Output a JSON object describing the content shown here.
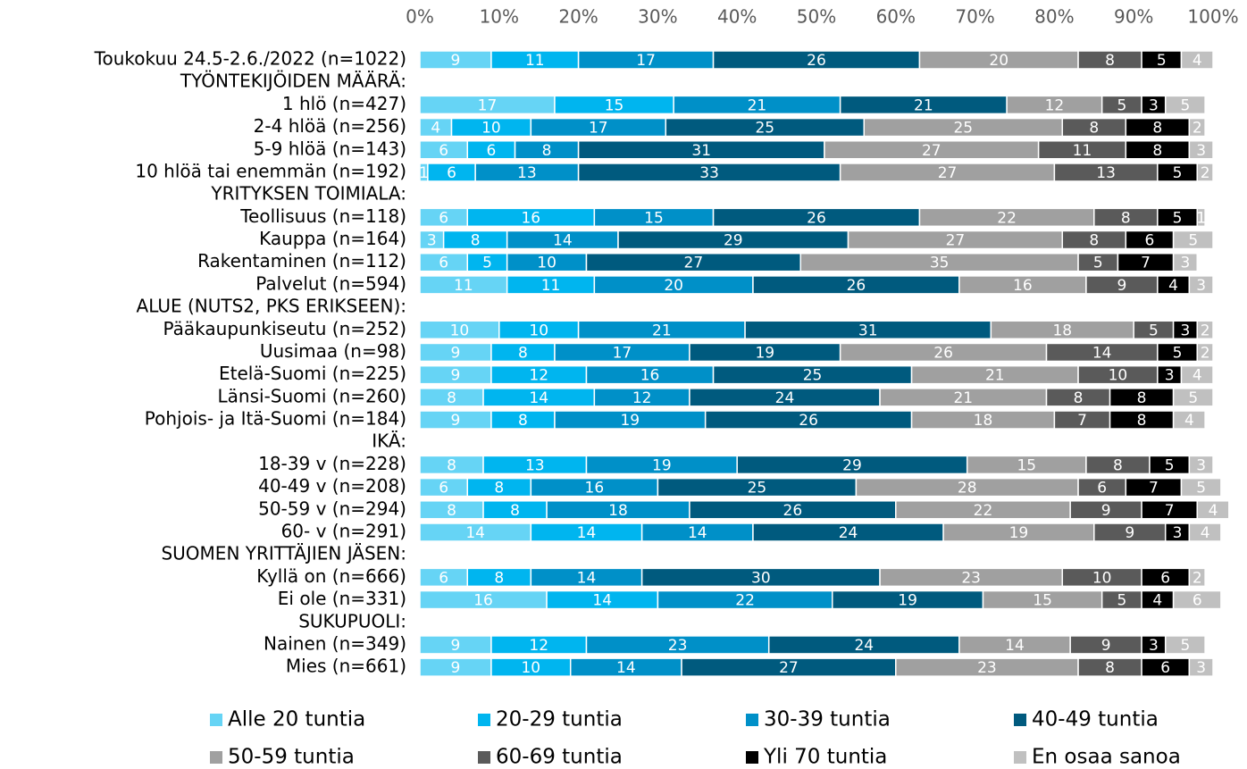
{
  "chart_data": {
    "type": "stacked-bar-horizontal",
    "categories": [
      "Toukokuu 24.5-2.6./2022 (n=1022)",
      "TYÖNTEKIJÖIDEN MÄÄRÄ:",
      "1 hlö (n=427)",
      "2-4 hlöä (n=256)",
      "5-9 hlöä (n=143)",
      "10 hlöä tai enemmän (n=192)",
      "YRITYKSEN TOIMIALA:",
      "Teollisuus (n=118)",
      "Kauppa (n=164)",
      "Rakentaminen (n=112)",
      "Palvelut (n=594)",
      "ALUE (NUTS2, PKS ERIKSEEN):",
      "Pääkaupunkiseutu (n=252)",
      "Uusimaa (n=98)",
      "Etelä-Suomi (n=225)",
      "Länsi-Suomi (n=260)",
      "Pohjois- ja Itä-Suomi (n=184)",
      "IKÄ:",
      "18-39 v (n=228)",
      "40-49 v (n=208)",
      "50-59 v (n=294)",
      "60- v (n=291)",
      "SUOMEN YRITTÄJIEN JÄSEN:",
      "Kyllä on (n=666)",
      "Ei ole (n=331)",
      "SUKUPUOLI:",
      "Nainen (n=349)",
      "Mies (n=661)"
    ],
    "series": [
      {
        "name": "Alle 20 tuntia",
        "color": "#66d4f5",
        "values": [
          9,
          null,
          17,
          4,
          6,
          1,
          null,
          6,
          3,
          6,
          11,
          null,
          10,
          9,
          9,
          8,
          9,
          null,
          8,
          6,
          8,
          14,
          null,
          6,
          16,
          null,
          9,
          9
        ]
      },
      {
        "name": "20-29 tuntia",
        "color": "#00b5ef",
        "values": [
          11,
          null,
          15,
          10,
          6,
          6,
          null,
          16,
          8,
          5,
          11,
          null,
          10,
          8,
          12,
          14,
          8,
          null,
          13,
          8,
          8,
          14,
          null,
          8,
          14,
          null,
          12,
          10
        ]
      },
      {
        "name": "30-39 tuntia",
        "color": "#0090c8",
        "values": [
          17,
          null,
          21,
          17,
          8,
          13,
          null,
          15,
          14,
          10,
          20,
          null,
          21,
          17,
          16,
          12,
          19,
          null,
          19,
          16,
          18,
          14,
          null,
          14,
          22,
          null,
          23,
          14
        ]
      },
      {
        "name": "40-49 tuntia",
        "color": "#005a7e",
        "values": [
          26,
          null,
          21,
          25,
          31,
          33,
          null,
          26,
          29,
          27,
          26,
          null,
          31,
          19,
          25,
          24,
          26,
          null,
          29,
          25,
          26,
          24,
          null,
          30,
          19,
          null,
          24,
          27
        ]
      },
      {
        "name": "50-59 tuntia",
        "color": "#a0a0a0",
        "values": [
          20,
          null,
          12,
          25,
          27,
          27,
          null,
          22,
          27,
          35,
          16,
          null,
          18,
          26,
          21,
          21,
          18,
          null,
          15,
          28,
          22,
          19,
          null,
          23,
          15,
          null,
          14,
          23
        ]
      },
      {
        "name": "60-69 tuntia",
        "color": "#5a5a5a",
        "values": [
          8,
          null,
          5,
          8,
          11,
          13,
          null,
          8,
          8,
          5,
          9,
          null,
          5,
          14,
          10,
          8,
          7,
          null,
          8,
          6,
          9,
          9,
          null,
          10,
          5,
          null,
          9,
          8
        ]
      },
      {
        "name": "Yli 70 tuntia",
        "color": "#000000",
        "values": [
          5,
          null,
          3,
          8,
          8,
          5,
          null,
          5,
          6,
          7,
          4,
          null,
          3,
          5,
          3,
          8,
          8,
          null,
          5,
          7,
          7,
          3,
          null,
          6,
          4,
          null,
          3,
          6
        ]
      },
      {
        "name": "En osaa sanoa",
        "color": "#c0c0c0",
        "values": [
          4,
          null,
          5,
          2,
          3,
          2,
          null,
          1,
          5,
          3,
          3,
          null,
          2,
          2,
          4,
          5,
          4,
          null,
          3,
          5,
          4,
          4,
          null,
          2,
          6,
          null,
          5,
          3
        ]
      }
    ],
    "xlim": [
      0,
      100
    ],
    "xticks": [
      {
        "value": 0,
        "label": "0%"
      },
      {
        "value": 10,
        "label": "10%"
      },
      {
        "value": 20,
        "label": "20%"
      },
      {
        "value": 30,
        "label": "30%"
      },
      {
        "value": 40,
        "label": "40%"
      },
      {
        "value": 50,
        "label": "50%"
      },
      {
        "value": 60,
        "label": "60%"
      },
      {
        "value": 70,
        "label": "70%"
      },
      {
        "value": 80,
        "label": "80%"
      },
      {
        "value": 90,
        "label": "90%"
      },
      {
        "value": 100,
        "label": "100%"
      }
    ]
  }
}
